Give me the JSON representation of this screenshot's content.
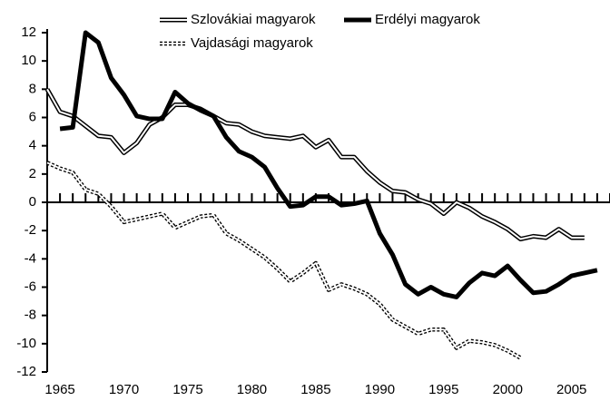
{
  "chart_data": {
    "type": "line",
    "x": [
      1964,
      1965,
      1966,
      1967,
      1968,
      1969,
      1970,
      1971,
      1972,
      1973,
      1974,
      1975,
      1976,
      1977,
      1978,
      1979,
      1980,
      1981,
      1982,
      1983,
      1984,
      1985,
      1986,
      1987,
      1988,
      1989,
      1990,
      1991,
      1992,
      1993,
      1994,
      1995,
      1996,
      1997,
      1998,
      1999,
      2000,
      2001,
      2002,
      2003,
      2004,
      2005,
      2006,
      2007
    ],
    "series": [
      {
        "name": "Szlovákiai magyarok",
        "color": "#000000",
        "style": "double",
        "values": [
          8,
          6.4,
          6.1,
          5.4,
          4.7,
          4.6,
          3.5,
          4.2,
          5.5,
          6,
          6.9,
          6.9,
          6.6,
          6.1,
          5.6,
          5.5,
          5,
          4.7,
          4.6,
          4.5,
          4.7,
          3.9,
          4.4,
          3.2,
          3.2,
          2.2,
          1.4,
          0.8,
          0.7,
          0.2,
          -0.1,
          -0.8,
          0,
          -0.4,
          -1,
          -1.4,
          -1.9,
          -2.6,
          -2.4,
          -2.5,
          -1.9,
          -2.5,
          -2.5,
          null
        ]
      },
      {
        "name": "Erdélyi magyarok",
        "color": "#000000",
        "style": "thick",
        "values": [
          null,
          5.2,
          5.3,
          12,
          11.3,
          8.8,
          7.6,
          6.1,
          5.9,
          5.9,
          7.8,
          7,
          6.5,
          6.1,
          4.6,
          3.6,
          3.2,
          2.5,
          1,
          -0.3,
          -0.2,
          0.4,
          0.4,
          -0.2,
          -0.1,
          0.1,
          -2.2,
          -3.7,
          -5.8,
          -6.5,
          -6,
          -6.5,
          -6.7,
          -5.7,
          -5,
          -5.2,
          -4.5,
          -5.5,
          -6.4,
          -6.3,
          -5.8,
          -5.2,
          -5,
          -4.8
        ]
      },
      {
        "name": "Vajdasági magyarok",
        "color": "#000000",
        "style": "dashed-double",
        "values": [
          2.8,
          2.4,
          2.1,
          0.9,
          0.6,
          -0.3,
          -1.4,
          -1.2,
          -1,
          -0.8,
          -1.8,
          -1.4,
          -1,
          -0.9,
          -2.2,
          -2.7,
          -3.3,
          -3.9,
          -4.7,
          -5.6,
          -5,
          -4.3,
          -6.2,
          -5.8,
          -6.1,
          -6.5,
          -7.2,
          -8.3,
          -8.8,
          -9.3,
          -9,
          -9,
          -10.3,
          -9.8,
          -9.9,
          -10.1,
          -10.5,
          -11,
          null,
          null,
          null,
          null,
          null,
          null
        ]
      }
    ],
    "xlim": [
      1964,
      2008
    ],
    "xticks": [
      1965,
      1970,
      1975,
      1980,
      1985,
      1990,
      1995,
      2000,
      2005
    ],
    "ylim": [
      -12,
      12
    ],
    "yticks": [
      -12,
      -10,
      -8,
      -6,
      -4,
      -2,
      0,
      2,
      4,
      6,
      8,
      10,
      12
    ],
    "legend": "top"
  }
}
